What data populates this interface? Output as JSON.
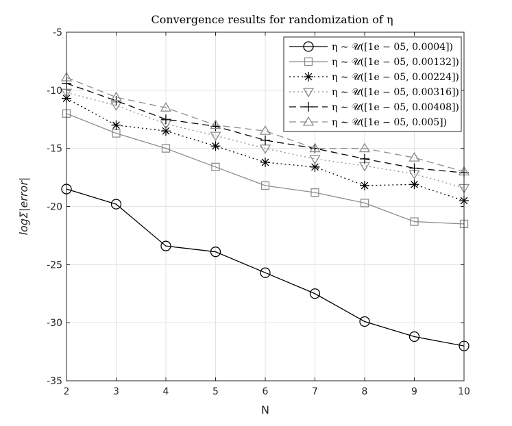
{
  "chart_data": {
    "type": "line",
    "title": "Convergence results for randomization of η",
    "xlabel": "N",
    "ylabel": "logΣ|error|",
    "xlim": [
      2,
      10
    ],
    "ylim": [
      -35,
      -5
    ],
    "x": [
      2,
      3,
      4,
      5,
      6,
      7,
      8,
      9,
      10
    ],
    "xticks": [
      "2",
      "3",
      "4",
      "5",
      "6",
      "7",
      "8",
      "9",
      "10"
    ],
    "yticks": [
      "-5",
      "-10",
      "-15",
      "-20",
      "-25",
      "-30",
      "-35"
    ],
    "grid": true,
    "legend_position": "top-right",
    "series": [
      {
        "name": "η ∼ 𝒰([1e − 05, 0.0004])",
        "values": [
          -18.5,
          -19.8,
          -23.4,
          -23.9,
          -25.7,
          -27.5,
          -29.9,
          -31.2,
          -32.0
        ],
        "color": "#000000",
        "dash": "solid",
        "marker": "circle"
      },
      {
        "name": "η ∼ 𝒰([1e − 05, 0.00132])",
        "values": [
          -12.0,
          -13.7,
          -15.0,
          -16.6,
          -18.2,
          -18.8,
          -19.7,
          -21.3,
          -21.5
        ],
        "color": "#8c8c8c",
        "dash": "solid",
        "marker": "square"
      },
      {
        "name": "η ∼ 𝒰([1e − 05, 0.00224])",
        "values": [
          -10.7,
          -13.0,
          -13.5,
          -14.8,
          -16.2,
          -16.6,
          -18.2,
          -18.1,
          -19.5
        ],
        "color": "#000000",
        "dash": "dotted",
        "marker": "asterisk"
      },
      {
        "name": "η ∼ 𝒰([1e − 05, 0.00316])",
        "values": [
          -10.2,
          -11.3,
          -12.9,
          -13.9,
          -15.0,
          -15.9,
          -16.5,
          -17.2,
          -18.4
        ],
        "color": "#8c8c8c",
        "dash": "dotted",
        "marker": "triangle-down"
      },
      {
        "name": "η ∼ 𝒰([1e − 05, 0.00408])",
        "values": [
          -9.4,
          -10.9,
          -12.5,
          -13.1,
          -14.3,
          -15.0,
          -15.9,
          -16.7,
          -17.1
        ],
        "color": "#000000",
        "dash": "dashed",
        "marker": "plus"
      },
      {
        "name": "η ∼ 𝒰([1e − 05, 0.005])",
        "values": [
          -8.9,
          -10.6,
          -11.5,
          -13.0,
          -13.5,
          -15.0,
          -15.0,
          -15.8,
          -17.0
        ],
        "color": "#8c8c8c",
        "dash": "dashed",
        "marker": "triangle-up"
      }
    ]
  }
}
